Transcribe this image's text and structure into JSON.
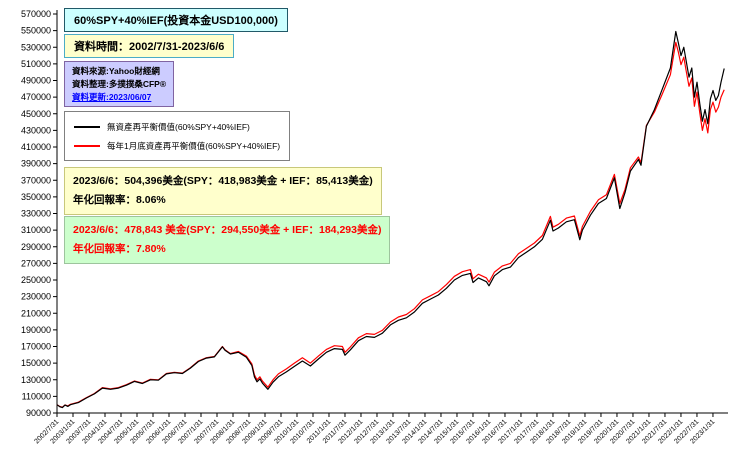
{
  "annotations": {
    "title_box": "60%SPY+40%IEF(投資本金USD100,000)",
    "period_box": "資料時間：2002/7/31-2023/6/6",
    "source_line1": "資料來源:Yahoo財經網",
    "source_line2": "資料整理:多撲撲桑CFP®",
    "source_line3": "資料更新:2023/06/07",
    "result_no_rebalance_line1": "2023/6/6：504,396美金(SPY：418,983美金 + IEF：85,413美金)",
    "result_no_rebalance_line2": "年化回報率：8.06%",
    "result_rebalance_line1": "2023/6/6：478,843 美金(SPY：294,550美金 + IEF：184,293美金)",
    "result_rebalance_line2": "年化回報率：7.80%"
  },
  "colors": {
    "series_no_rebalance": "#000000",
    "series_rebalance": "#ff0000",
    "title_bg": "#ccffff",
    "period_bg": "#ffffcc",
    "source_bg": "#ccccff",
    "result1_bg": "#ffffcc",
    "result2_bg": "#ccffcc",
    "result2_text": "#ff0000",
    "update_text": "#0000ff"
  },
  "chart_data": {
    "type": "line",
    "title": "60%SPY+40%IEF(投資本金USD100,000)",
    "xlabel": "",
    "ylabel": "",
    "ylim": [
      90000,
      570000
    ],
    "ytick_step": 20000,
    "t_range": [
      2002.58,
      2023.55
    ],
    "x_label_rotation": -45,
    "grid": false,
    "legend_position": "upper-left",
    "x_labels": [
      "2002/7/31",
      "2003/1/31",
      "2003/7/31",
      "2004/1/31",
      "2004/7/31",
      "2005/1/31",
      "2005/7/31",
      "2006/1/31",
      "2006/7/31",
      "2007/1/31",
      "2007/7/31",
      "2008/1/31",
      "2008/7/31",
      "2009/1/31",
      "2009/7/31",
      "2010/1/31",
      "2010/7/31",
      "2011/1/31",
      "2011/7/31",
      "2012/1/31",
      "2012/7/31",
      "2013/1/31",
      "2013/7/31",
      "2014/1/31",
      "2014/7/31",
      "2015/1/31",
      "2015/7/31",
      "2016/1/31",
      "2016/7/31",
      "2017/1/31",
      "2017/7/31",
      "2018/1/31",
      "2018/7/31",
      "2019/1/31",
      "2019/7/31",
      "2020/1/31",
      "2020/7/31",
      "2021/1/31",
      "2021/7/31",
      "2022/1/31",
      "2022/7/31",
      "2023/1/31"
    ],
    "series": [
      {
        "name": "無資產再平衡價值(60%SPY+40%IEF)",
        "color": "#000000",
        "final_value": 504396,
        "points": [
          [
            2002.58,
            100000
          ],
          [
            2002.67,
            97500
          ],
          [
            2002.75,
            96500
          ],
          [
            2002.83,
            99500
          ],
          [
            2002.92,
            98000
          ],
          [
            2003.0,
            100000
          ],
          [
            2003.25,
            102500
          ],
          [
            2003.5,
            108000
          ],
          [
            2003.75,
            113000
          ],
          [
            2004.0,
            120000
          ],
          [
            2004.25,
            118500
          ],
          [
            2004.5,
            120000
          ],
          [
            2004.75,
            123500
          ],
          [
            2005.0,
            128000
          ],
          [
            2005.25,
            125500
          ],
          [
            2005.5,
            130000
          ],
          [
            2005.75,
            129500
          ],
          [
            2006.0,
            137000
          ],
          [
            2006.25,
            138500
          ],
          [
            2006.5,
            137500
          ],
          [
            2006.75,
            144000
          ],
          [
            2007.0,
            152000
          ],
          [
            2007.25,
            156000
          ],
          [
            2007.5,
            157500
          ],
          [
            2007.75,
            169500
          ],
          [
            2007.83,
            165500
          ],
          [
            2008.0,
            161000
          ],
          [
            2008.25,
            163000
          ],
          [
            2008.5,
            157000
          ],
          [
            2008.67,
            147000
          ],
          [
            2008.75,
            133500
          ],
          [
            2008.83,
            127500
          ],
          [
            2008.92,
            131000
          ],
          [
            2009.0,
            126000
          ],
          [
            2009.17,
            118500
          ],
          [
            2009.33,
            127000
          ],
          [
            2009.5,
            133500
          ],
          [
            2009.75,
            139500
          ],
          [
            2010.0,
            146000
          ],
          [
            2010.25,
            152500
          ],
          [
            2010.5,
            146500
          ],
          [
            2010.75,
            155000
          ],
          [
            2011.0,
            163000
          ],
          [
            2011.25,
            167500
          ],
          [
            2011.5,
            166500
          ],
          [
            2011.58,
            159500
          ],
          [
            2011.75,
            166000
          ],
          [
            2012.0,
            177000
          ],
          [
            2012.25,
            182000
          ],
          [
            2012.5,
            181000
          ],
          [
            2012.75,
            186000
          ],
          [
            2013.0,
            196000
          ],
          [
            2013.25,
            201500
          ],
          [
            2013.5,
            204500
          ],
          [
            2013.75,
            211500
          ],
          [
            2014.0,
            222000
          ],
          [
            2014.25,
            227000
          ],
          [
            2014.5,
            232000
          ],
          [
            2014.75,
            240000
          ],
          [
            2015.0,
            250000
          ],
          [
            2015.25,
            255500
          ],
          [
            2015.5,
            258000
          ],
          [
            2015.58,
            247000
          ],
          [
            2015.75,
            252500
          ],
          [
            2016.0,
            248000
          ],
          [
            2016.08,
            243000
          ],
          [
            2016.25,
            255000
          ],
          [
            2016.5,
            262500
          ],
          [
            2016.75,
            265500
          ],
          [
            2017.0,
            277000
          ],
          [
            2017.25,
            283500
          ],
          [
            2017.5,
            290000
          ],
          [
            2017.75,
            299000
          ],
          [
            2018.0,
            322000
          ],
          [
            2018.08,
            309000
          ],
          [
            2018.25,
            312500
          ],
          [
            2018.5,
            320000
          ],
          [
            2018.75,
            322500
          ],
          [
            2018.92,
            298500
          ],
          [
            2019.0,
            310000
          ],
          [
            2019.25,
            328000
          ],
          [
            2019.5,
            342000
          ],
          [
            2019.75,
            348000
          ],
          [
            2020.0,
            373000
          ],
          [
            2020.17,
            336000
          ],
          [
            2020.33,
            355000
          ],
          [
            2020.5,
            381000
          ],
          [
            2020.75,
            395000
          ],
          [
            2020.83,
            388000
          ],
          [
            2021.0,
            435000
          ],
          [
            2021.25,
            455000
          ],
          [
            2021.5,
            480000
          ],
          [
            2021.75,
            505000
          ],
          [
            2021.92,
            549000
          ],
          [
            2022.0,
            535000
          ],
          [
            2022.08,
            520000
          ],
          [
            2022.17,
            530000
          ],
          [
            2022.25,
            512000
          ],
          [
            2022.33,
            494000
          ],
          [
            2022.42,
            505000
          ],
          [
            2022.5,
            470000
          ],
          [
            2022.58,
            488000
          ],
          [
            2022.67,
            462000
          ],
          [
            2022.75,
            441000
          ],
          [
            2022.83,
            455000
          ],
          [
            2022.92,
            438000
          ],
          [
            2023.0,
            468000
          ],
          [
            2023.08,
            478000
          ],
          [
            2023.17,
            466000
          ],
          [
            2023.25,
            472000
          ],
          [
            2023.33,
            488000
          ],
          [
            2023.43,
            504396
          ]
        ]
      },
      {
        "name": "每年1月底資產再平衡價值(60%SPY+40%IEF)",
        "color": "#ff0000",
        "final_value": 478843,
        "points": [
          [
            2002.58,
            100000
          ],
          [
            2002.67,
            97800
          ],
          [
            2002.75,
            97000
          ],
          [
            2002.83,
            99800
          ],
          [
            2002.92,
            98500
          ],
          [
            2003.0,
            100500
          ],
          [
            2003.25,
            103000
          ],
          [
            2003.5,
            108500
          ],
          [
            2003.75,
            113500
          ],
          [
            2004.0,
            120500
          ],
          [
            2004.25,
            119000
          ],
          [
            2004.5,
            120500
          ],
          [
            2004.75,
            124000
          ],
          [
            2005.0,
            128500
          ],
          [
            2005.25,
            126000
          ],
          [
            2005.5,
            130500
          ],
          [
            2005.75,
            130000
          ],
          [
            2006.0,
            137500
          ],
          [
            2006.25,
            139000
          ],
          [
            2006.5,
            138000
          ],
          [
            2006.75,
            144500
          ],
          [
            2007.0,
            152500
          ],
          [
            2007.25,
            156500
          ],
          [
            2007.5,
            158000
          ],
          [
            2007.75,
            170000
          ],
          [
            2007.83,
            166000
          ],
          [
            2008.0,
            161500
          ],
          [
            2008.25,
            164000
          ],
          [
            2008.5,
            158500
          ],
          [
            2008.67,
            149000
          ],
          [
            2008.75,
            136000
          ],
          [
            2008.83,
            130000
          ],
          [
            2008.92,
            133500
          ],
          [
            2009.0,
            128500
          ],
          [
            2009.17,
            121000
          ],
          [
            2009.33,
            130000
          ],
          [
            2009.5,
            137000
          ],
          [
            2009.75,
            143000
          ],
          [
            2010.0,
            150000
          ],
          [
            2010.25,
            156500
          ],
          [
            2010.5,
            150000
          ],
          [
            2010.75,
            158500
          ],
          [
            2011.0,
            166500
          ],
          [
            2011.25,
            171000
          ],
          [
            2011.5,
            170000
          ],
          [
            2011.58,
            163000
          ],
          [
            2011.75,
            169500
          ],
          [
            2012.0,
            180500
          ],
          [
            2012.25,
            185500
          ],
          [
            2012.5,
            184500
          ],
          [
            2012.75,
            189500
          ],
          [
            2013.0,
            199500
          ],
          [
            2013.25,
            205500
          ],
          [
            2013.5,
            208500
          ],
          [
            2013.75,
            215500
          ],
          [
            2014.0,
            226000
          ],
          [
            2014.25,
            231000
          ],
          [
            2014.5,
            236000
          ],
          [
            2014.75,
            244500
          ],
          [
            2015.0,
            254500
          ],
          [
            2015.25,
            260000
          ],
          [
            2015.5,
            262500
          ],
          [
            2015.58,
            251500
          ],
          [
            2015.75,
            257000
          ],
          [
            2016.0,
            252500
          ],
          [
            2016.08,
            247500
          ],
          [
            2016.25,
            259500
          ],
          [
            2016.5,
            267000
          ],
          [
            2016.75,
            270000
          ],
          [
            2017.0,
            281500
          ],
          [
            2017.25,
            288000
          ],
          [
            2017.5,
            294500
          ],
          [
            2017.75,
            303500
          ],
          [
            2018.0,
            326500
          ],
          [
            2018.08,
            313500
          ],
          [
            2018.25,
            317000
          ],
          [
            2018.5,
            324500
          ],
          [
            2018.75,
            327000
          ],
          [
            2018.92,
            303000
          ],
          [
            2019.0,
            314500
          ],
          [
            2019.25,
            332500
          ],
          [
            2019.5,
            346500
          ],
          [
            2019.75,
            352500
          ],
          [
            2020.0,
            377000
          ],
          [
            2020.17,
            342000
          ],
          [
            2020.33,
            359000
          ],
          [
            2020.5,
            385000
          ],
          [
            2020.75,
            398000
          ],
          [
            2020.83,
            391000
          ],
          [
            2021.0,
            436000
          ],
          [
            2021.25,
            452000
          ],
          [
            2021.5,
            474000
          ],
          [
            2021.75,
            497000
          ],
          [
            2021.92,
            536000
          ],
          [
            2022.0,
            524000
          ],
          [
            2022.08,
            509000
          ],
          [
            2022.17,
            518000
          ],
          [
            2022.25,
            500000
          ],
          [
            2022.33,
            483000
          ],
          [
            2022.42,
            493000
          ],
          [
            2022.5,
            459000
          ],
          [
            2022.58,
            476000
          ],
          [
            2022.67,
            451000
          ],
          [
            2022.75,
            430000
          ],
          [
            2022.83,
            444000
          ],
          [
            2022.92,
            427000
          ],
          [
            2023.0,
            455000
          ],
          [
            2023.08,
            464000
          ],
          [
            2023.17,
            452000
          ],
          [
            2023.25,
            458000
          ],
          [
            2023.33,
            470000
          ],
          [
            2023.43,
            478843
          ]
        ]
      }
    ]
  }
}
